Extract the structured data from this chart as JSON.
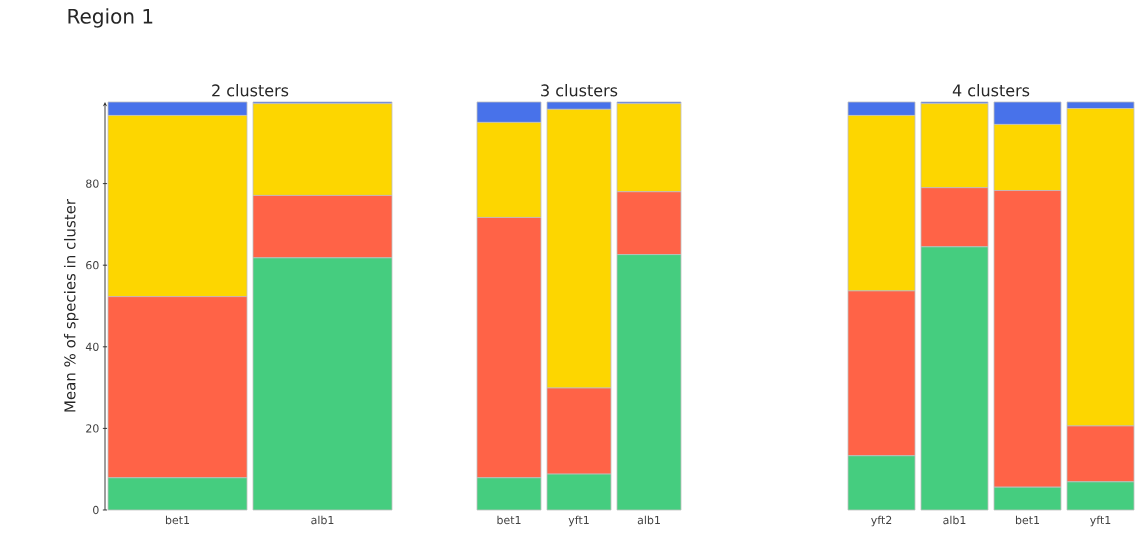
{
  "chart_data": [
    {
      "type": "bar",
      "title": "Region 1",
      "subtitle": "2 clusters",
      "ylabel": "Mean % of species in cluster",
      "stacked": true,
      "categories": [
        "bet1",
        "alb1"
      ],
      "ylim": [
        0,
        100
      ],
      "yticks": [
        0,
        20,
        40,
        60,
        80
      ],
      "series": [
        {
          "color": "#45cd7f",
          "values": [
            7.9,
            61.8
          ]
        },
        {
          "color": "#ff6347",
          "values": [
            44.4,
            15.3
          ]
        },
        {
          "color": "#fdd600",
          "values": [
            44.4,
            22.5
          ]
        },
        {
          "color": "#4872ea",
          "values": [
            3.3,
            0.4
          ]
        }
      ]
    },
    {
      "type": "bar",
      "subtitle": "3 clusters",
      "stacked": true,
      "tick_labels": "x",
      "categories": [
        "bet1",
        "yft1",
        "alb1"
      ],
      "ylim": [
        0,
        100
      ],
      "series": [
        {
          "color": "#45cd7f",
          "values": [
            7.9,
            8.8,
            62.6
          ]
        },
        {
          "color": "#ff6347",
          "values": [
            63.8,
            21.1,
            15.4
          ]
        },
        {
          "color": "#fdd600",
          "values": [
            23.3,
            68.3,
            21.6
          ]
        },
        {
          "color": "#4872ea",
          "values": [
            5.0,
            1.8,
            0.4
          ]
        }
      ]
    },
    {
      "type": "bar",
      "subtitle": "4 clusters",
      "stacked": true,
      "tick_labels": "x",
      "categories": [
        "yft2",
        "alb1",
        "bet1",
        "yft1"
      ],
      "ylim": [
        0,
        100
      ],
      "series": [
        {
          "color": "#45cd7f",
          "values": [
            13.3,
            64.5,
            5.6,
            6.9
          ]
        },
        {
          "color": "#ff6347",
          "values": [
            40.4,
            14.5,
            72.7,
            13.7
          ]
        },
        {
          "color": "#fdd600",
          "values": [
            43.0,
            20.6,
            16.2,
            77.8
          ]
        },
        {
          "color": "#4872ea",
          "values": [
            3.3,
            0.4,
            5.5,
            1.6
          ]
        }
      ]
    }
  ]
}
